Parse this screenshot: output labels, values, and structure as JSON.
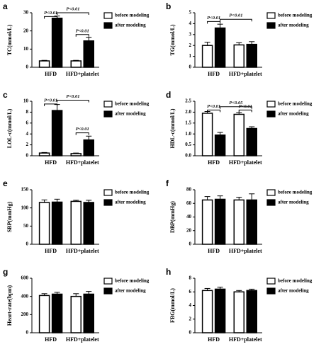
{
  "chart_data": [
    {
      "type": "bar",
      "panel": "a",
      "ylabel": "TC(mmol/L)",
      "categories": [
        "HFD",
        "HFD+platelet"
      ],
      "series": [
        {
          "name": "before modeling",
          "color": "#ffffff",
          "values": [
            3.5,
            3.5
          ],
          "errors": [
            0.3,
            0.3
          ]
        },
        {
          "name": "after modeling",
          "color": "#000000",
          "values": [
            27,
            14.5
          ],
          "errors": [
            1.2,
            2
          ]
        }
      ],
      "ylim": [
        0,
        30
      ],
      "yticks": [
        0,
        10,
        20,
        30
      ],
      "annotations": [
        "P<0.01",
        "P<0.01",
        "P<0.01"
      ]
    },
    {
      "type": "bar",
      "panel": "b",
      "ylabel": "TG(mmol/L)",
      "categories": [
        "HFD",
        "HFD+platelet"
      ],
      "series": [
        {
          "name": "before modeling",
          "color": "#ffffff",
          "values": [
            2.0,
            2.05
          ],
          "errors": [
            0.3,
            0.2
          ]
        },
        {
          "name": "after modeling",
          "color": "#000000",
          "values": [
            3.6,
            2.1
          ],
          "errors": [
            0.35,
            0.25
          ]
        }
      ],
      "ylim": [
        0,
        5
      ],
      "yticks": [
        0,
        1,
        2,
        3,
        4,
        5
      ],
      "annotations": [
        "P<0.01",
        "P<0.01"
      ]
    },
    {
      "type": "bar",
      "panel": "c",
      "ylabel": "LOL-c(mmol/L)",
      "categories": [
        "HFD",
        "HFD+platelet"
      ],
      "series": [
        {
          "name": "before modeling",
          "color": "#ffffff",
          "values": [
            0.5,
            0.4
          ],
          "errors": [
            0.1,
            0.1
          ]
        },
        {
          "name": "after modeling",
          "color": "#000000",
          "values": [
            8.3,
            2.9
          ],
          "errors": [
            1.1,
            0.7
          ]
        }
      ],
      "ylim": [
        0,
        10
      ],
      "yticks": [
        0,
        2,
        4,
        6,
        8,
        10
      ],
      "annotations": [
        "P<0.01",
        "P<0.01",
        "P<0.01"
      ]
    },
    {
      "type": "bar",
      "panel": "d",
      "ylabel": "HDL-c(mmol/L)",
      "categories": [
        "HFD",
        "HFD+platelet"
      ],
      "series": [
        {
          "name": "before modeling",
          "color": "#ffffff",
          "values": [
            1.95,
            1.9
          ],
          "errors": [
            0.08,
            0.08
          ]
        },
        {
          "name": "after modeling",
          "color": "#000000",
          "values": [
            0.95,
            1.25
          ],
          "errors": [
            0.12,
            0.08
          ]
        }
      ],
      "ylim": [
        0,
        2.5
      ],
      "yticks": [
        {
          "value": 0,
          "label": "0.0"
        },
        0.5,
        {
          "value": 1,
          "label": "1.0"
        },
        1.5,
        {
          "value": 2,
          "label": "2.0"
        },
        2.5
      ],
      "annotations": [
        "P<0.01",
        "P<0.05",
        "P<0.01"
      ]
    },
    {
      "type": "bar",
      "panel": "e",
      "ylabel": "SBP(mmHg)",
      "categories": [
        "HFD",
        "HFD+platelet"
      ],
      "series": [
        {
          "name": "before modeling",
          "color": "#ffffff",
          "values": [
            115,
            118
          ],
          "errors": [
            7,
            3
          ]
        },
        {
          "name": "after modeling",
          "color": "#000000",
          "values": [
            116,
            115
          ],
          "errors": [
            8,
            6
          ]
        }
      ],
      "ylim": [
        0,
        150
      ],
      "yticks": [
        0,
        50,
        100,
        150
      ],
      "annotations": []
    },
    {
      "type": "bar",
      "panel": "f",
      "ylabel": "DBP(mmHg)",
      "categories": [
        "HFD",
        "HFD+platelet"
      ],
      "series": [
        {
          "name": "before modeling",
          "color": "#ffffff",
          "values": [
            65,
            65
          ],
          "errors": [
            5,
            4
          ]
        },
        {
          "name": "after modeling",
          "color": "#000000",
          "values": [
            66,
            65
          ],
          "errors": [
            5,
            9
          ]
        }
      ],
      "ylim": [
        0,
        80
      ],
      "yticks": [
        0,
        20,
        40,
        60,
        80
      ],
      "annotations": []
    },
    {
      "type": "bar",
      "panel": "g",
      "ylabel": "Heart-rate(bpm)",
      "categories": [
        "HFD",
        "HFD+platelet"
      ],
      "series": [
        {
          "name": "before modeling",
          "color": "#ffffff",
          "values": [
            410,
            400
          ],
          "errors": [
            20,
            30
          ]
        },
        {
          "name": "after modeling",
          "color": "#000000",
          "values": [
            425,
            425
          ],
          "errors": [
            20,
            30
          ]
        }
      ],
      "ylim": [
        0,
        600
      ],
      "yticks": [
        0,
        200,
        400,
        600
      ],
      "annotations": []
    },
    {
      "type": "bar",
      "panel": "h",
      "ylabel": "FBG(mmol/L)",
      "categories": [
        "HFD",
        "HFD+platelet"
      ],
      "series": [
        {
          "name": "before modeling",
          "color": "#ffffff",
          "values": [
            6.2,
            6.0
          ],
          "errors": [
            0.3,
            0.2
          ]
        },
        {
          "name": "after modeling",
          "color": "#000000",
          "values": [
            6.4,
            6.2
          ],
          "errors": [
            0.3,
            0.2
          ]
        }
      ],
      "ylim": [
        0,
        8
      ],
      "yticks": [
        0,
        2,
        4,
        6,
        8
      ],
      "annotations": []
    }
  ]
}
